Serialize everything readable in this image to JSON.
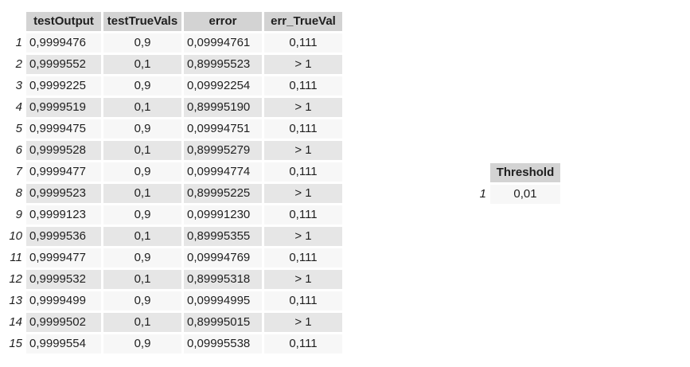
{
  "main_table": {
    "columns": [
      "testOutput",
      "testTrueVals",
      "error",
      "err_TrueVal"
    ],
    "rows": [
      {
        "index": "1",
        "testOutput": "0,9999476",
        "testTrueVals": "0,9",
        "error": "0,09994761",
        "err_TrueVal": "0,111"
      },
      {
        "index": "2",
        "testOutput": "0,9999552",
        "testTrueVals": "0,1",
        "error": "0,89995523",
        "err_TrueVal": "> 1"
      },
      {
        "index": "3",
        "testOutput": "0,9999225",
        "testTrueVals": "0,9",
        "error": "0,09992254",
        "err_TrueVal": "0,111"
      },
      {
        "index": "4",
        "testOutput": "0,9999519",
        "testTrueVals": "0,1",
        "error": "0,89995190",
        "err_TrueVal": "> 1"
      },
      {
        "index": "5",
        "testOutput": "0,9999475",
        "testTrueVals": "0,9",
        "error": "0,09994751",
        "err_TrueVal": "0,111"
      },
      {
        "index": "6",
        "testOutput": "0,9999528",
        "testTrueVals": "0,1",
        "error": "0,89995279",
        "err_TrueVal": "> 1"
      },
      {
        "index": "7",
        "testOutput": "0,9999477",
        "testTrueVals": "0,9",
        "error": "0,09994774",
        "err_TrueVal": "0,111"
      },
      {
        "index": "8",
        "testOutput": "0,9999523",
        "testTrueVals": "0,1",
        "error": "0,89995225",
        "err_TrueVal": "> 1"
      },
      {
        "index": "9",
        "testOutput": "0,9999123",
        "testTrueVals": "0,9",
        "error": "0,09991230",
        "err_TrueVal": "0,111"
      },
      {
        "index": "10",
        "testOutput": "0,9999536",
        "testTrueVals": "0,1",
        "error": "0,89995355",
        "err_TrueVal": "> 1"
      },
      {
        "index": "11",
        "testOutput": "0,9999477",
        "testTrueVals": "0,9",
        "error": "0,09994769",
        "err_TrueVal": "0,111"
      },
      {
        "index": "12",
        "testOutput": "0,9999532",
        "testTrueVals": "0,1",
        "error": "0,89995318",
        "err_TrueVal": "> 1"
      },
      {
        "index": "13",
        "testOutput": "0,9999499",
        "testTrueVals": "0,9",
        "error": "0,09994995",
        "err_TrueVal": "0,111"
      },
      {
        "index": "14",
        "testOutput": "0,9999502",
        "testTrueVals": "0,1",
        "error": "0,89995015",
        "err_TrueVal": "> 1"
      },
      {
        "index": "15",
        "testOutput": "0,9999554",
        "testTrueVals": "0,9",
        "error": "0,09995538",
        "err_TrueVal": "0,111"
      }
    ]
  },
  "threshold_table": {
    "columns": [
      "Threshold"
    ],
    "rows": [
      {
        "index": "1",
        "Threshold": "0,01"
      }
    ]
  },
  "colors": {
    "header_bg": "#d3d3d3",
    "row_odd_bg": "#f7f7f7",
    "row_even_bg": "#e6e6e6",
    "text": "#1f1f1f"
  }
}
